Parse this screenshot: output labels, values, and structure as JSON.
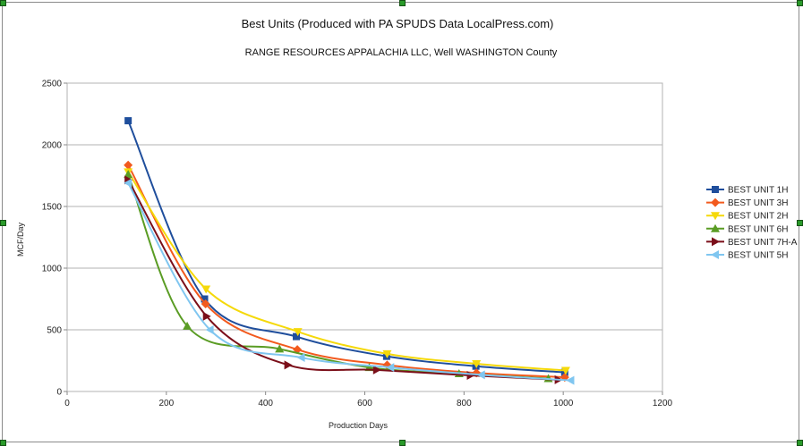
{
  "chart_data": {
    "type": "line",
    "title": "Best Units (Produced with PA SPUDS Data LocalPress.com)",
    "subtitle": "RANGE RESOURCES APPALACHIA LLC, Well  WASHINGTON County",
    "xlabel": "Production Days",
    "ylabel": "MCF/Day",
    "xlim": [
      0,
      1200
    ],
    "ylim": [
      0,
      2500
    ],
    "xticks": [
      "0",
      "200",
      "400",
      "600",
      "800",
      "1000",
      "1200"
    ],
    "yticks": [
      "0",
      "500",
      "1000",
      "1500",
      "2000",
      "2500"
    ],
    "grid": true,
    "legend_position": "right",
    "series": [
      {
        "name": "BEST UNIT 1H",
        "color": "#1f4e9c",
        "marker": "square",
        "x": [
          123,
          277,
          462,
          644,
          824,
          1003
        ],
        "y": [
          2195,
          750,
          445,
          285,
          205,
          155
        ]
      },
      {
        "name": "BEST UNIT 3H",
        "color": "#f25a1e",
        "marker": "diamond",
        "x": [
          123,
          279,
          464,
          645,
          825,
          1003
        ],
        "y": [
          1835,
          710,
          340,
          215,
          150,
          115
        ]
      },
      {
        "name": "BEST UNIT 2H",
        "color": "#f5d90a",
        "marker": "triangle-down",
        "x": [
          123,
          280,
          465,
          645,
          825,
          1005
        ],
        "y": [
          1780,
          830,
          485,
          305,
          225,
          170
        ]
      },
      {
        "name": "BEST UNIT 6H",
        "color": "#5a9c24",
        "marker": "triangle-up",
        "x": [
          123,
          242,
          428,
          609,
          790,
          970
        ],
        "y": [
          1760,
          530,
          345,
          195,
          145,
          105
        ]
      },
      {
        "name": "BEST UNIT 7H-A",
        "color": "#7b0f1a",
        "marker": "triangle-right",
        "x": [
          123,
          281,
          445,
          624,
          813,
          990
        ],
        "y": [
          1715,
          610,
          215,
          175,
          130,
          95
        ]
      },
      {
        "name": "BEST UNIT 5H",
        "color": "#80c6f0",
        "marker": "triangle-left",
        "x": [
          123,
          288,
          472,
          652,
          835,
          1015
        ],
        "y": [
          1690,
          500,
          275,
          195,
          135,
          90
        ]
      }
    ]
  }
}
